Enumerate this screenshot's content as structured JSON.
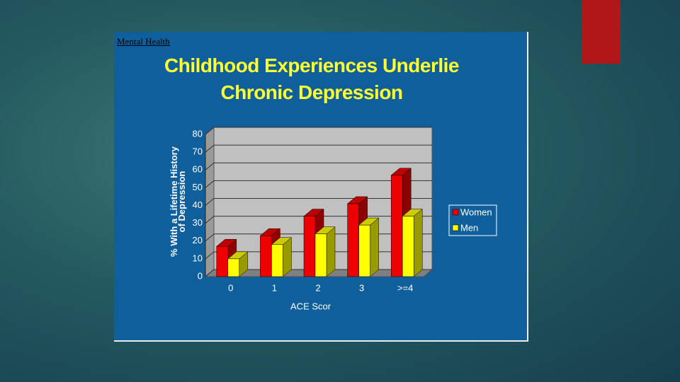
{
  "slide": {
    "label": "Mental Health"
  },
  "chart_data": {
    "type": "bar3d",
    "title": "Childhood Experiences Underlie Chronic Depression",
    "y_label": "% With a Lifetime History of Depression",
    "x_label": "ACE Scor",
    "categories": [
      "0",
      "1",
      "2",
      "3",
      ">=4"
    ],
    "series": [
      {
        "name": "Women",
        "color": "#ee0000",
        "values": [
          17,
          23,
          34,
          41,
          57
        ]
      },
      {
        "name": "Men",
        "color": "#ffff00",
        "values": [
          10,
          18,
          24,
          29,
          34
        ]
      }
    ],
    "ylim": [
      0,
      80
    ],
    "yticks": [
      0,
      10,
      20,
      30,
      40,
      50,
      60,
      70,
      80
    ],
    "grid": true,
    "legend": "right"
  }
}
